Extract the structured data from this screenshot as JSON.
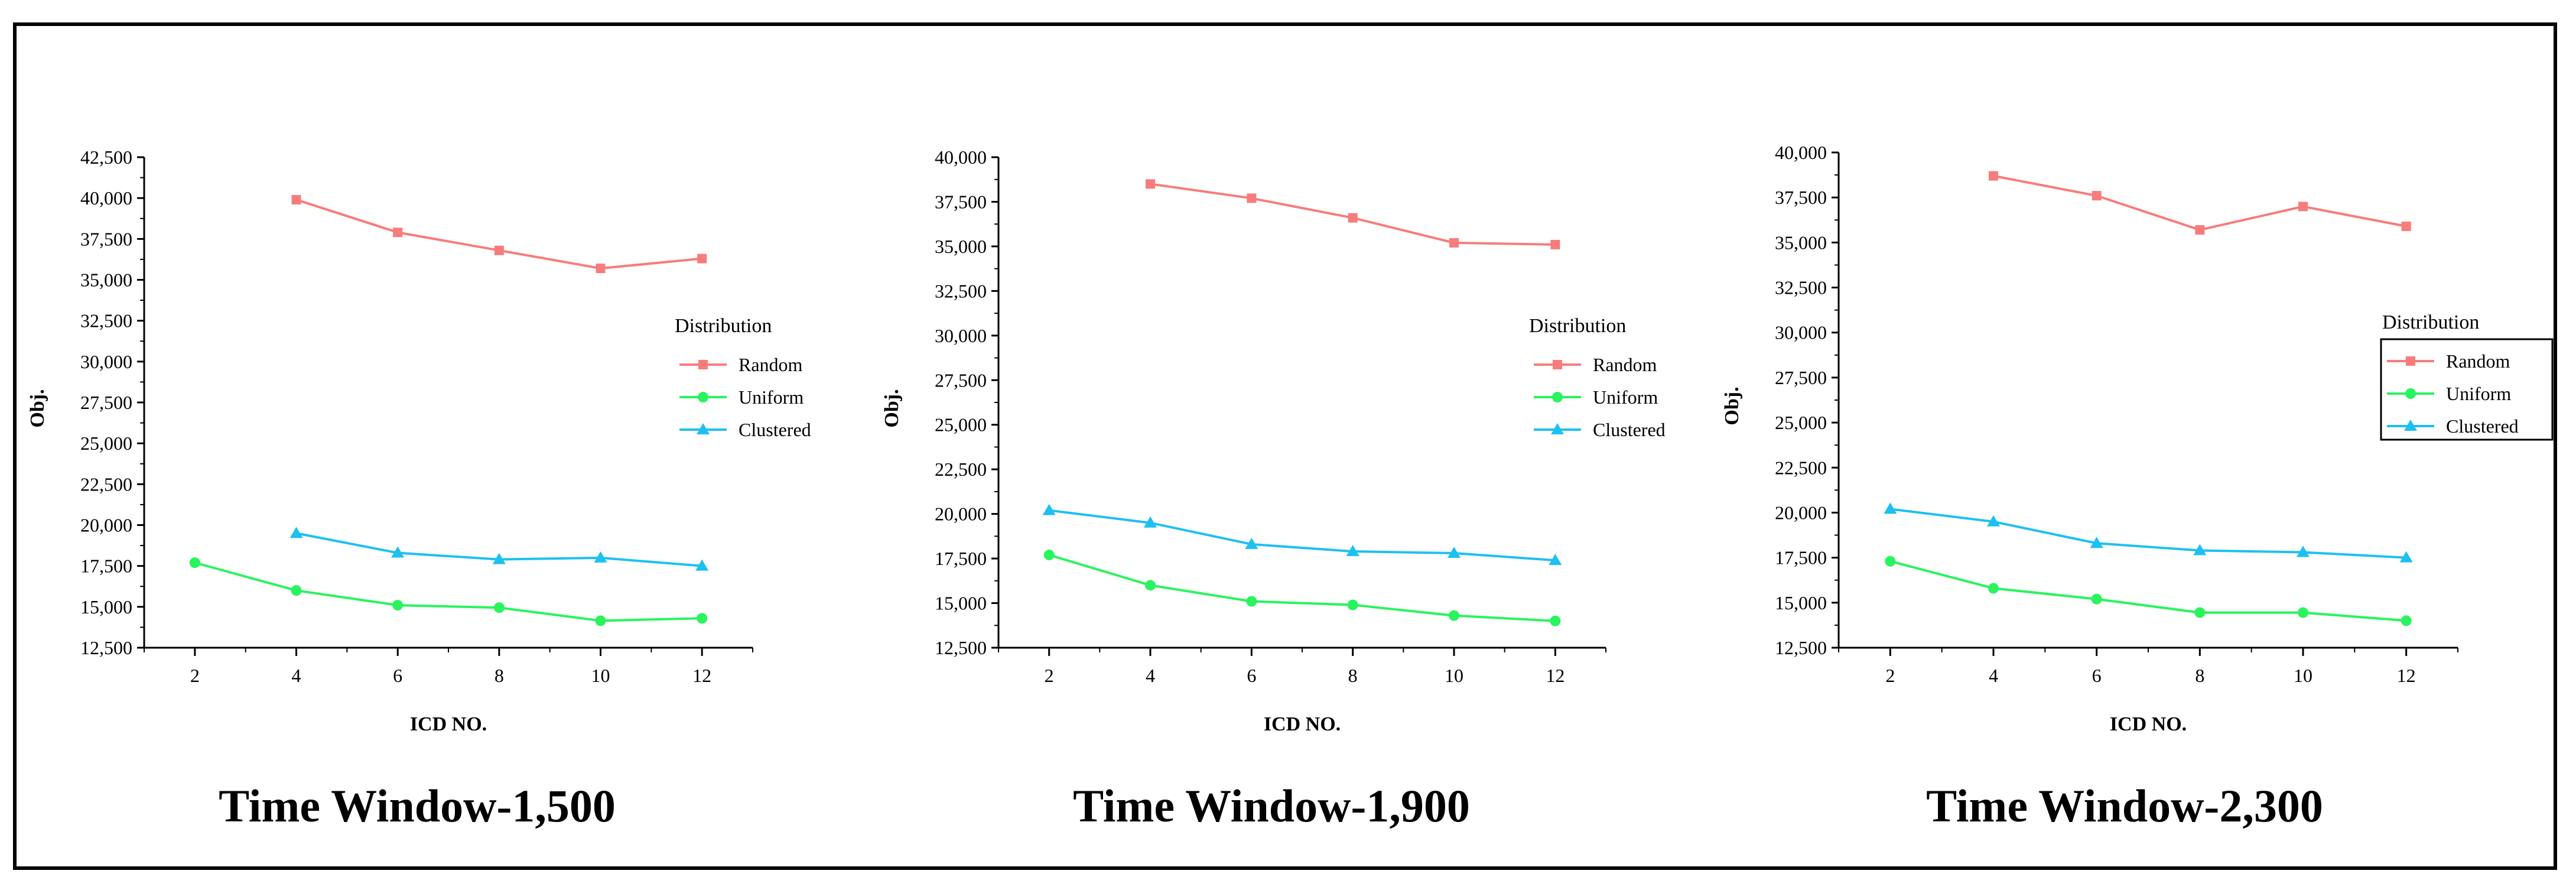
{
  "colors": {
    "Random": "#f87c7c",
    "Uniform": "#29f45e",
    "Clustered": "#1ec0f2"
  },
  "chart_data": [
    {
      "type": "line",
      "caption": "Time Window-1,500",
      "xlabel": "ICD NO.",
      "ylabel": "Obj.",
      "x_ticks": [
        2,
        4,
        6,
        8,
        10,
        12
      ],
      "xlim": [
        1,
        13
      ],
      "ylim": [
        12500,
        42500
      ],
      "y_ticks": [
        "12,500",
        "15,000",
        "17,500",
        "20,000",
        "22,500",
        "25,000",
        "27,500",
        "30,000",
        "32,500",
        "35,000",
        "37,500",
        "40,000",
        "42,500"
      ],
      "legend": {
        "title": "Distribution",
        "placement": "right",
        "framed": false
      },
      "series": [
        {
          "name": "Random",
          "marker": "square",
          "x": [
            4,
            6,
            8,
            10,
            12
          ],
          "y": [
            39900,
            37900,
            36800,
            35700,
            36300
          ]
        },
        {
          "name": "Uniform",
          "marker": "circle",
          "x": [
            2,
            4,
            6,
            8,
            10,
            12
          ],
          "y": [
            17700,
            16000,
            15100,
            14950,
            14150,
            14300
          ]
        },
        {
          "name": "Clustered",
          "marker": "triangle",
          "x": [
            4,
            6,
            8,
            10,
            12
          ],
          "y": [
            19500,
            18300,
            17900,
            18000,
            17500
          ]
        }
      ]
    },
    {
      "type": "line",
      "caption": "Time Window-1,900",
      "xlabel": "ICD NO.",
      "ylabel": "Obj.",
      "x_ticks": [
        2,
        4,
        6,
        8,
        10,
        12
      ],
      "xlim": [
        1,
        13
      ],
      "ylim": [
        12500,
        40000
      ],
      "y_ticks": [
        "12,500",
        "15,000",
        "17,500",
        "20,000",
        "22,500",
        "25,000",
        "27,500",
        "30,000",
        "32,500",
        "35,000",
        "37,500",
        "40,000"
      ],
      "legend": {
        "title": "Distribution",
        "placement": "right",
        "framed": false
      },
      "series": [
        {
          "name": "Random",
          "marker": "square",
          "x": [
            4,
            6,
            8,
            10,
            12
          ],
          "y": [
            38500,
            37700,
            36600,
            35200,
            35100
          ]
        },
        {
          "name": "Uniform",
          "marker": "circle",
          "x": [
            2,
            4,
            6,
            8,
            10,
            12
          ],
          "y": [
            17700,
            16000,
            15100,
            14900,
            14300,
            14000
          ]
        },
        {
          "name": "Clustered",
          "marker": "triangle",
          "x": [
            2,
            4,
            6,
            8,
            10,
            12
          ],
          "y": [
            20200,
            19500,
            18300,
            17900,
            17800,
            17400
          ]
        }
      ]
    },
    {
      "type": "line",
      "caption": "Time Window-2,300",
      "xlabel": "ICD NO.",
      "ylabel": "Obj.",
      "x_ticks": [
        2,
        4,
        6,
        8,
        10,
        12
      ],
      "xlim": [
        1,
        13
      ],
      "ylim": [
        12500,
        40000
      ],
      "y_ticks": [
        "12,500",
        "15,000",
        "17,500",
        "20,000",
        "22,500",
        "25,000",
        "27,500",
        "30,000",
        "32,500",
        "35,000",
        "37,500",
        "40,000"
      ],
      "legend": {
        "title": "Distribution",
        "placement": "right",
        "framed": true
      },
      "series": [
        {
          "name": "Random",
          "marker": "square",
          "x": [
            4,
            6,
            8,
            10,
            12
          ],
          "y": [
            38700,
            37600,
            35700,
            37000,
            35900
          ]
        },
        {
          "name": "Uniform",
          "marker": "circle",
          "x": [
            2,
            4,
            6,
            8,
            10,
            12
          ],
          "y": [
            17300,
            15800,
            15200,
            14450,
            14450,
            14000
          ]
        },
        {
          "name": "Clustered",
          "marker": "triangle",
          "x": [
            2,
            4,
            6,
            8,
            10,
            12
          ],
          "y": [
            20200,
            19500,
            18300,
            17900,
            17800,
            17500
          ]
        }
      ]
    }
  ]
}
